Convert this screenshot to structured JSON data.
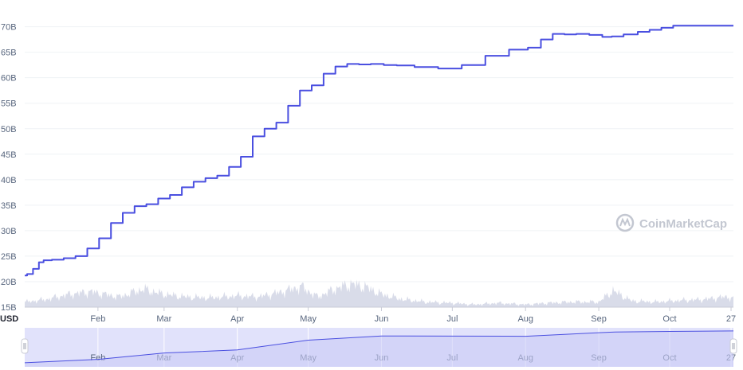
{
  "chart_data": {
    "type": "line",
    "unit_label": "USD",
    "watermark": "CoinMarketCap",
    "y_ticks": [
      "15B",
      "20B",
      "25B",
      "30B",
      "35B",
      "40B",
      "45B",
      "50B",
      "55B",
      "60B",
      "65B",
      "70B"
    ],
    "ylim": [
      15,
      71.5
    ],
    "x_ticks": [
      "Feb",
      "Mar",
      "Apr",
      "May",
      "Jun",
      "Jul",
      "Aug",
      "Sep",
      "Oct",
      "27"
    ],
    "xlim": [
      "2021-01-01",
      "2021-10-28"
    ],
    "grid": true,
    "series": [
      {
        "color": "#4a4fe0",
        "x": [
          "2021-01-01",
          "2021-01-03",
          "2021-01-06",
          "2021-01-08",
          "2021-01-10",
          "2021-01-15",
          "2021-01-20",
          "2021-01-25",
          "2021-01-30",
          "2021-02-04",
          "2021-02-09",
          "2021-02-14",
          "2021-02-19",
          "2021-02-24",
          "2021-03-01",
          "2021-03-06",
          "2021-03-11",
          "2021-03-16",
          "2021-03-21",
          "2021-03-26",
          "2021-03-31",
          "2021-04-05",
          "2021-04-10",
          "2021-04-15",
          "2021-04-20",
          "2021-04-25",
          "2021-04-30",
          "2021-05-05",
          "2021-05-10",
          "2021-05-15",
          "2021-05-20",
          "2021-05-25",
          "2021-05-30",
          "2021-06-05",
          "2021-06-10",
          "2021-06-20",
          "2021-06-30",
          "2021-07-10",
          "2021-07-20",
          "2021-07-30",
          "2021-08-05",
          "2021-08-10",
          "2021-08-15",
          "2021-08-20",
          "2021-08-25",
          "2021-08-31",
          "2021-09-05",
          "2021-09-08",
          "2021-09-15",
          "2021-09-20",
          "2021-09-25",
          "2021-09-30",
          "2021-10-05",
          "2021-10-10",
          "2021-10-15",
          "2021-10-20",
          "2021-10-25",
          "2021-10-28"
        ],
        "y": [
          21.2,
          21.5,
          22.5,
          23.8,
          24.2,
          24.3,
          24.6,
          25.0,
          26.5,
          28.5,
          31.5,
          33.5,
          34.8,
          35.2,
          36.3,
          37.0,
          38.5,
          39.6,
          40.3,
          40.8,
          42.5,
          44.5,
          48.5,
          50.0,
          51.2,
          54.5,
          57.5,
          58.5,
          60.8,
          62.2,
          62.7,
          62.6,
          62.7,
          62.5,
          62.4,
          62.1,
          61.8,
          62.5,
          64.3,
          65.5,
          65.9,
          67.5,
          68.6,
          68.5,
          68.6,
          68.4,
          68.0,
          68.1,
          68.5,
          69.0,
          69.4,
          69.8,
          70.2,
          70.2,
          70.2,
          70.2,
          70.2,
          70.2
        ]
      }
    ],
    "volume": {
      "color": "#cfd3e3",
      "x": [
        "2021-01-01",
        "2021-01-10",
        "2021-01-20",
        "2021-01-29",
        "2021-02-10",
        "2021-02-20",
        "2021-03-01",
        "2021-03-10",
        "2021-03-20",
        "2021-04-01",
        "2021-04-10",
        "2021-04-20",
        "2021-04-28",
        "2021-05-05",
        "2021-05-12",
        "2021-05-19",
        "2021-05-25",
        "2021-06-01",
        "2021-06-10",
        "2021-06-20",
        "2021-07-01",
        "2021-07-10",
        "2021-07-20",
        "2021-08-01",
        "2021-08-10",
        "2021-08-20",
        "2021-09-01",
        "2021-09-07",
        "2021-09-15",
        "2021-09-25",
        "2021-10-05",
        "2021-10-15",
        "2021-10-25",
        "2021-10-28"
      ],
      "y": [
        16.0,
        16.5,
        17.5,
        18.0,
        17.0,
        18.5,
        17.5,
        17.0,
        16.8,
        17.2,
        17.0,
        18.0,
        19.0,
        17.0,
        18.5,
        19.5,
        19.0,
        17.5,
        16.5,
        16.0,
        15.8,
        15.5,
        15.8,
        15.5,
        15.8,
        16.0,
        16.0,
        18.2,
        16.2,
        16.0,
        16.3,
        16.5,
        17.0,
        16.8
      ]
    },
    "navigator": {
      "x": [
        "2021-01-01",
        "2021-02-01",
        "2021-03-01",
        "2021-04-01",
        "2021-05-01",
        "2021-06-01",
        "2021-07-01",
        "2021-08-01",
        "2021-09-01",
        "2021-09-08",
        "2021-10-01",
        "2021-10-28"
      ],
      "y": [
        21.2,
        26.5,
        36.3,
        41.0,
        56.0,
        62.5,
        62.3,
        62.0,
        67.5,
        68.5,
        69.5,
        70.2
      ]
    }
  }
}
